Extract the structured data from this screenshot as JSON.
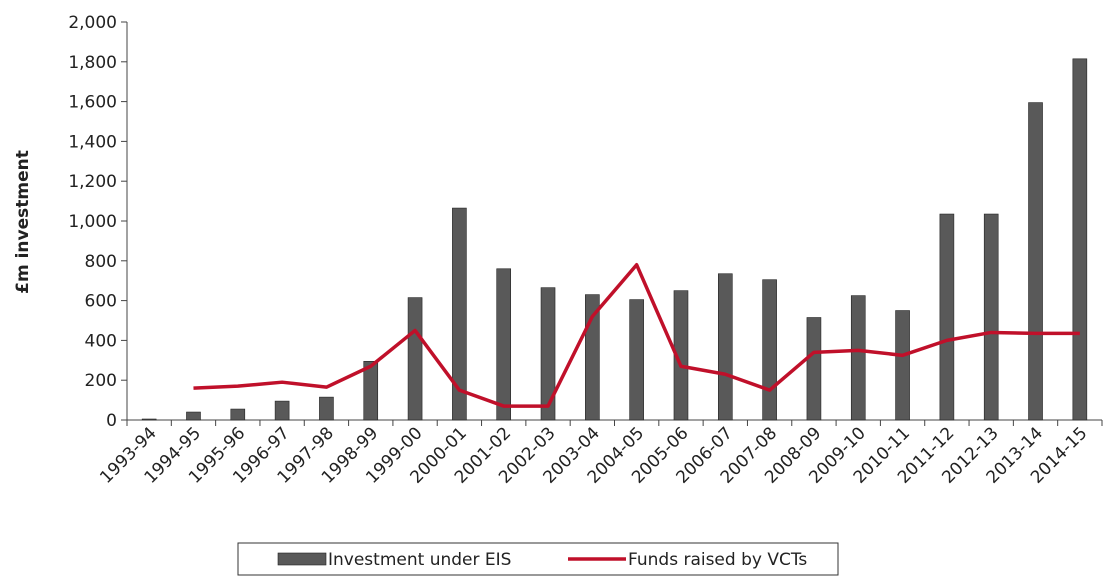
{
  "chart_data": {
    "type": "bar-line",
    "y_label": "£m investment",
    "categories": [
      "1993-94",
      "1994-95",
      "1995-96",
      "1996-97",
      "1997-98",
      "1998-99",
      "1999-00",
      "2000-01",
      "2001-02",
      "2002-03",
      "2003-04",
      "2004-05",
      "2005-06",
      "2006-07",
      "2007-08",
      "2008-09",
      "2009-10",
      "2010-11",
      "2011-12",
      "2012-13",
      "2013-14",
      "2014-15"
    ],
    "series": [
      {
        "name": "Investment under EIS",
        "type": "bar",
        "color": "#595959",
        "values": [
          5,
          40,
          55,
          95,
          115,
          295,
          615,
          1065,
          760,
          665,
          630,
          605,
          650,
          735,
          705,
          515,
          625,
          550,
          1035,
          1035,
          1595,
          1815
        ]
      },
      {
        "name": "Funds raised by VCTs",
        "type": "line",
        "color": "#c0102a",
        "values": [
          null,
          160,
          170,
          190,
          165,
          270,
          450,
          150,
          70,
          70,
          520,
          780,
          270,
          230,
          150,
          340,
          350,
          325,
          400,
          440,
          435,
          435
        ]
      }
    ],
    "ylim": [
      0,
      2000
    ],
    "yticks": [
      0,
      200,
      400,
      600,
      800,
      {
        "value": 1000,
        "label": "1,000"
      },
      {
        "value": 1200,
        "label": "1,200"
      },
      {
        "value": 1400,
        "label": "1,400"
      },
      {
        "value": 1600,
        "label": "1,600"
      },
      {
        "value": 1800,
        "label": "1,800"
      },
      {
        "value": 2000,
        "label": "2,000"
      }
    ],
    "legend": "bottom"
  }
}
